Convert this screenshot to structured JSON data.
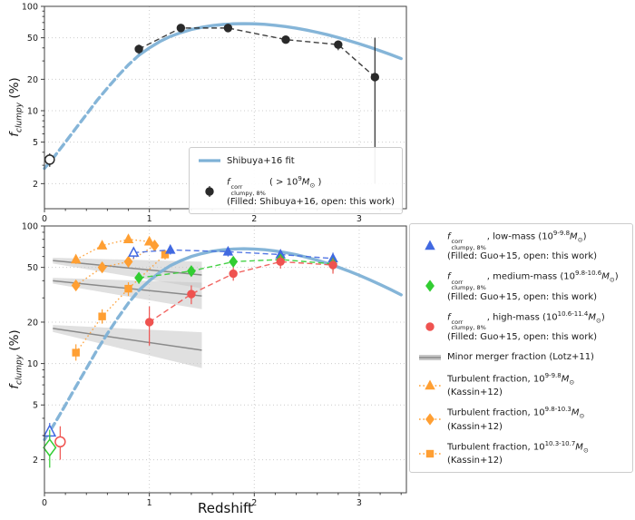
{
  "figure": {
    "xlabel": "Redshift",
    "ylabel_html": "<i>f</i><sub><i>clumpy</i></sub> (%)"
  },
  "chart_data": {
    "type": "line",
    "yscale": "log",
    "xlabel": "Redshift",
    "ylabel": "f_clumpy (%)",
    "fit": {
      "name": "Shibuya+16 fit",
      "color": "#7eb1d6",
      "dash_until": 0.9,
      "x": [
        0,
        0.1,
        0.2,
        0.3,
        0.4,
        0.5,
        0.6,
        0.7,
        0.8,
        0.9,
        1,
        1.1,
        1.2,
        1.3,
        1.4,
        1.5,
        1.6,
        1.7,
        1.8,
        1.9,
        2,
        2.1,
        2.2,
        2.3,
        2.4,
        2.5,
        2.6,
        2.7,
        2.8,
        2.9,
        3,
        3.1,
        3.2,
        3.3,
        3.4
      ],
      "y": [
        2.8,
        3.7,
        5,
        6.8,
        9.2,
        12.5,
        16.5,
        21.5,
        27.5,
        34,
        40,
        46,
        51.5,
        56,
        60,
        63,
        65.5,
        67,
        68,
        68.3,
        68,
        67.2,
        65.8,
        64,
        61.8,
        59.2,
        56.4,
        53.4,
        50.2,
        47,
        43.8,
        40.6,
        37.5,
        34.5,
        31.6
      ]
    },
    "panels": [
      {
        "id": "top",
        "xlim": [
          0,
          3.45
        ],
        "ylim": [
          1.15,
          100
        ],
        "xticks": [
          0,
          1,
          2,
          3
        ],
        "yticks": [
          2,
          5,
          10,
          20,
          50,
          100
        ],
        "grid": true,
        "series": [
          {
            "name": "clumpy-all-mass",
            "marker": "circle",
            "color": "#2a2a2a",
            "linestyle": "dashed",
            "points": [
              {
                "x": 0.9,
                "y": 39,
                "lo": 35,
                "hi": 43
              },
              {
                "x": 1.3,
                "y": 62,
                "lo": 58,
                "hi": 66
              },
              {
                "x": 1.75,
                "y": 62,
                "lo": 58,
                "hi": 66
              },
              {
                "x": 2.3,
                "y": 48,
                "lo": 44,
                "hi": 52
              },
              {
                "x": 2.8,
                "y": 43,
                "lo": 38,
                "hi": 47
              },
              {
                "x": 3.15,
                "y": 21,
                "lo": 2.0,
                "hi": 50
              }
            ],
            "detached": [
              {
                "x": 0.05,
                "y": 3.4,
                "lo": 2.9,
                "hi": 3.9,
                "open": true,
                "s": 1.2
              }
            ]
          }
        ],
        "legend": {
          "position": "inside lower right",
          "entries": [
            {
              "icon": "line",
              "color": "#7eb1d6",
              "linestyle": "solid",
              "lw": 3.2,
              "lines": [
                "Shibuya+16 fit"
              ]
            },
            {
              "icon": "marker",
              "marker": "circle",
              "errbar": true,
              "color": "#2a2a2a",
              "linestyle": "none",
              "lines": [
                "<i>f</i><span class='ss'><span>corr</span><span>clumpy, 8%</span></span> ( &gt; 10<sup>9</sup><i>M</i><sub>⊙</sub> )",
                "(Filled: Shibuya+16, open: this work)"
              ]
            }
          ]
        }
      },
      {
        "id": "bottom",
        "xlim": [
          0,
          3.45
        ],
        "ylim": [
          1.15,
          100
        ],
        "xticks": [
          0,
          1,
          2,
          3
        ],
        "yticks": [
          2,
          5,
          10,
          20,
          50,
          100
        ],
        "grid": true,
        "bands_name": "Minor merger fraction (Lotz+11)",
        "bands": [
          {
            "x0": 0.08,
            "y0": 56,
            "x1": 1.5,
            "y1": 44,
            "f0": 1.05,
            "f1": 1.25
          },
          {
            "x0": 0.08,
            "y0": 40,
            "x1": 1.5,
            "y1": 31,
            "f0": 1.05,
            "f1": 1.25
          },
          {
            "x0": 0.08,
            "y0": 18,
            "x1": 1.5,
            "y1": 12.5,
            "f0": 1.06,
            "f1": 1.35
          }
        ],
        "series": [
          {
            "name": "turbulent-low-mass",
            "marker": "triangle",
            "color": "#ff9f33",
            "linestyle": "dotted",
            "points": [
              {
                "x": 0.3,
                "y": 57,
                "lo": 53,
                "hi": 61
              },
              {
                "x": 0.55,
                "y": 72,
                "lo": 68,
                "hi": 76
              },
              {
                "x": 0.8,
                "y": 80,
                "lo": 76,
                "hi": 84
              },
              {
                "x": 1.0,
                "y": 77,
                "lo": 73,
                "hi": 81
              }
            ]
          },
          {
            "name": "turbulent-mid-mass",
            "marker": "diamond",
            "color": "#ff9f33",
            "linestyle": "dotted",
            "points": [
              {
                "x": 0.3,
                "y": 37,
                "lo": 34,
                "hi": 40
              },
              {
                "x": 0.55,
                "y": 50,
                "lo": 46,
                "hi": 54
              },
              {
                "x": 0.8,
                "y": 55,
                "lo": 51,
                "hi": 59
              },
              {
                "x": 1.05,
                "y": 72,
                "lo": 67,
                "hi": 77
              }
            ]
          },
          {
            "name": "turbulent-high-mass",
            "marker": "square",
            "color": "#ff9f33",
            "linestyle": "dotted",
            "points": [
              {
                "x": 0.3,
                "y": 12,
                "lo": 10.5,
                "hi": 13.8
              },
              {
                "x": 0.55,
                "y": 22,
                "lo": 19.5,
                "hi": 24.8
              },
              {
                "x": 0.8,
                "y": 35,
                "lo": 31,
                "hi": 39
              },
              {
                "x": 1.15,
                "y": 62,
                "lo": 57,
                "hi": 67
              }
            ]
          },
          {
            "name": "clumpy-low-mass",
            "marker": "triangle",
            "color": "#4169e1",
            "linestyle": "dashed",
            "points": [
              {
                "x": 0.85,
                "y": 64,
                "lo": 58,
                "hi": 70,
                "open": true
              },
              {
                "x": 1.2,
                "y": 67,
                "lo": 62,
                "hi": 72
              },
              {
                "x": 1.75,
                "y": 65,
                "lo": 60,
                "hi": 70
              },
              {
                "x": 2.25,
                "y": 62,
                "lo": 57,
                "hi": 67
              },
              {
                "x": 2.75,
                "y": 58,
                "lo": 52,
                "hi": 64
              }
            ],
            "detached": [
              {
                "x": 0.05,
                "y": 3.2,
                "lo": 2.75,
                "hi": 3.7,
                "open": true,
                "s": 1.25
              }
            ]
          },
          {
            "name": "clumpy-medium-mass",
            "marker": "diamond",
            "color": "#32cd32",
            "linestyle": "dashed",
            "points": [
              {
                "x": 0.9,
                "y": 42,
                "lo": 38,
                "hi": 46
              },
              {
                "x": 1.4,
                "y": 47,
                "lo": 43,
                "hi": 51
              },
              {
                "x": 1.8,
                "y": 55,
                "lo": 50,
                "hi": 60
              },
              {
                "x": 2.25,
                "y": 57,
                "lo": 52,
                "hi": 62
              },
              {
                "x": 2.75,
                "y": 53,
                "lo": 47,
                "hi": 59
              }
            ],
            "detached": [
              {
                "x": 0.05,
                "y": 2.45,
                "lo": 1.75,
                "hi": 3.3,
                "open": true,
                "s": 1.55
              }
            ]
          },
          {
            "name": "clumpy-high-mass",
            "marker": "circle",
            "color": "#ef5350",
            "linestyle": "dashed",
            "points": [
              {
                "x": 1.0,
                "y": 20,
                "lo": 13.5,
                "hi": 26
              },
              {
                "x": 1.4,
                "y": 32,
                "lo": 27,
                "hi": 37
              },
              {
                "x": 1.8,
                "y": 45,
                "lo": 40,
                "hi": 50
              },
              {
                "x": 2.25,
                "y": 55,
                "lo": 49,
                "hi": 61
              },
              {
                "x": 2.75,
                "y": 52,
                "lo": 45,
                "hi": 58
              }
            ],
            "detached": [
              {
                "x": 0.15,
                "y": 2.7,
                "lo": 2.0,
                "hi": 3.5,
                "open": true,
                "s": 1.3
              }
            ]
          }
        ],
        "legend": {
          "position": "outside right",
          "entries": [
            {
              "icon": "marker",
              "marker": "triangle",
              "color": "#4169e1",
              "linestyle": "none",
              "lines": [
                "<i>f</i><span class='ss'><span>corr</span><span>clumpy, 8%</span></span>, low-mass (10<sup>9-9.8</sup><i>M</i><sub>⊙</sub>)",
                "(Filled: Guo+15, open: this work)"
              ]
            },
            {
              "icon": "marker",
              "marker": "diamond",
              "color": "#32cd32",
              "linestyle": "none",
              "lines": [
                "<i>f</i><span class='ss'><span>corr</span><span>clumpy, 8%</span></span>, medium-mass (10<sup>9.8-10.6</sup><i>M</i><sub>⊙</sub>)",
                "(Filled: Guo+15, open: this work)"
              ]
            },
            {
              "icon": "marker",
              "marker": "circle",
              "color": "#ef5350",
              "linestyle": "none",
              "lines": [
                "<i>f</i><span class='ss'><span>corr</span><span>clumpy, 8%</span></span>, high-mass (10<sup>10.6-11.4</sup><i>M</i><sub>⊙</sub>)",
                "(Filled: Guo+15, open: this work)"
              ]
            },
            {
              "icon": "band",
              "color": "#8a8a8a",
              "linestyle": "solid",
              "lw": 1.5,
              "lines": [
                "Minor merger fraction (Lotz+11)"
              ]
            },
            {
              "icon": "marker",
              "marker": "triangle",
              "color": "#ff9f33",
              "linestyle": "dotted",
              "lines": [
                "Turbulent fraction, 10<sup>9-9.8</sup><i>M</i><sub>⊙</sub> (Kassin+12)"
              ]
            },
            {
              "icon": "marker",
              "marker": "diamond",
              "color": "#ff9f33",
              "linestyle": "dotted",
              "lines": [
                "Turbulent fraction, 10<sup>9.8-10.3</sup><i>M</i><sub>⊙</sub> (Kassin+12)"
              ]
            },
            {
              "icon": "marker",
              "marker": "square",
              "color": "#ff9f33",
              "linestyle": "dotted",
              "lines": [
                "Turbulent fraction, 10<sup>10.3-10.7</sup><i>M</i><sub>⊙</sub> (Kassin+12)"
              ]
            }
          ]
        }
      }
    ]
  }
}
